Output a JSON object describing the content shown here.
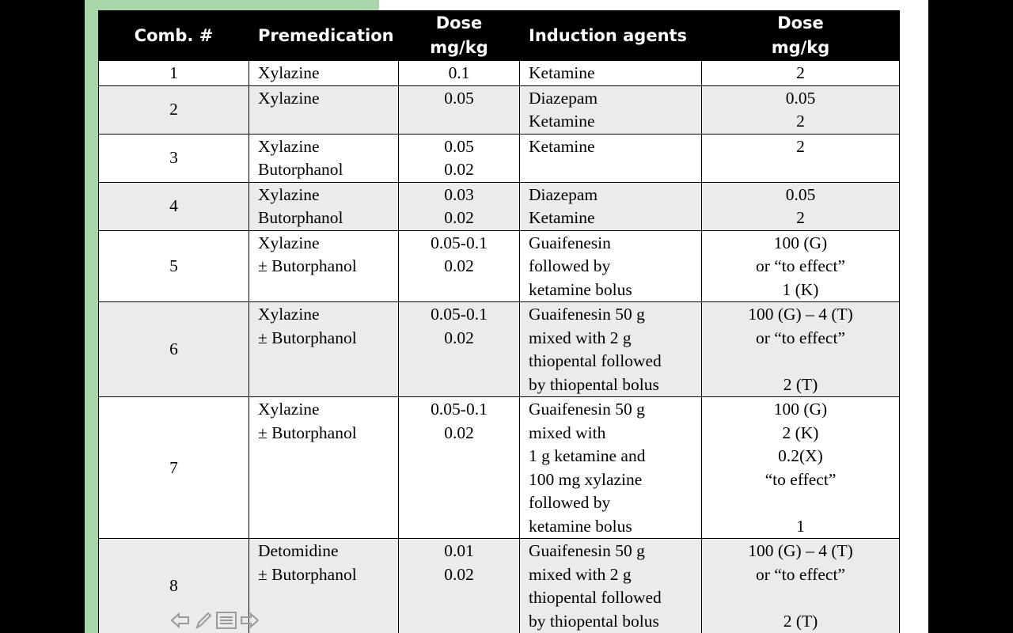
{
  "table": {
    "headers": {
      "comb": "Comb. #",
      "premed": "Premedication",
      "dose1": [
        "Dose",
        "mg/kg"
      ],
      "induction": "Induction agents",
      "dose2": [
        "Dose",
        "mg/kg"
      ]
    },
    "rows": [
      {
        "num": "1",
        "premed": [
          "Xylazine"
        ],
        "dose1": [
          "0.1"
        ],
        "induction": [
          "Ketamine"
        ],
        "dose2": [
          "2"
        ]
      },
      {
        "num": "2",
        "premed": [
          "Xylazine"
        ],
        "dose1": [
          "0.05"
        ],
        "induction": [
          "Diazepam",
          "Ketamine"
        ],
        "dose2": [
          "0.05",
          "2"
        ]
      },
      {
        "num": "3",
        "premed": [
          "Xylazine",
          "Butorphanol"
        ],
        "dose1": [
          "0.05",
          "0.02"
        ],
        "induction": [
          "Ketamine"
        ],
        "dose2": [
          "2"
        ]
      },
      {
        "num": "4",
        "premed": [
          "Xylazine",
          "Butorphanol"
        ],
        "dose1": [
          "0.03",
          "0.02"
        ],
        "induction": [
          "Diazepam",
          "Ketamine"
        ],
        "dose2": [
          "0.05",
          "2"
        ]
      },
      {
        "num": "5",
        "premed": [
          "Xylazine",
          "± Butorphanol"
        ],
        "dose1": [
          "0.05-0.1",
          "0.02"
        ],
        "induction": [
          "Guaifenesin",
          "followed by",
          "ketamine bolus"
        ],
        "dose2": [
          "100 (G)",
          "or “to effect”",
          "1 (K)"
        ]
      },
      {
        "num": "6",
        "premed": [
          "Xylazine",
          "± Butorphanol"
        ],
        "dose1": [
          "0.05-0.1",
          "0.02"
        ],
        "induction": [
          "Guaifenesin 50 g",
          "mixed with 2 g",
          "thiopental followed",
          "by thiopental bolus"
        ],
        "dose2": [
          "100 (G) – 4 (T)",
          "or “to effect”",
          "",
          "2 (T)"
        ]
      },
      {
        "num": "7",
        "premed": [
          "Xylazine",
          "± Butorphanol"
        ],
        "dose1": [
          "0.05-0.1",
          "0.02"
        ],
        "induction": [
          "Guaifenesin 50 g",
          "mixed with",
          "1 g ketamine and",
          "100  mg xylazine",
          "followed by",
          "ketamine bolus"
        ],
        "dose2": [
          "100 (G)",
          "2 (K)",
          "0.2(X)",
          "“to effect”",
          "",
          "1"
        ]
      },
      {
        "num": "8",
        "premed": [
          "Detomidine",
          "± Butorphanol"
        ],
        "dose1": [
          "0.01",
          "0.02"
        ],
        "induction": [
          "Guaifenesin 50 g",
          "mixed with 2 g",
          "thiopental followed",
          "by thiopental bolus"
        ],
        "dose2": [
          "100 (G) – 4 (T)",
          "or “to effect”",
          "",
          "2 (T)"
        ]
      }
    ]
  },
  "nav": {
    "icons": [
      "arrow-left-icon",
      "pen-icon",
      "menu-icon",
      "arrow-right-icon"
    ],
    "color": "#9a9a9a"
  }
}
